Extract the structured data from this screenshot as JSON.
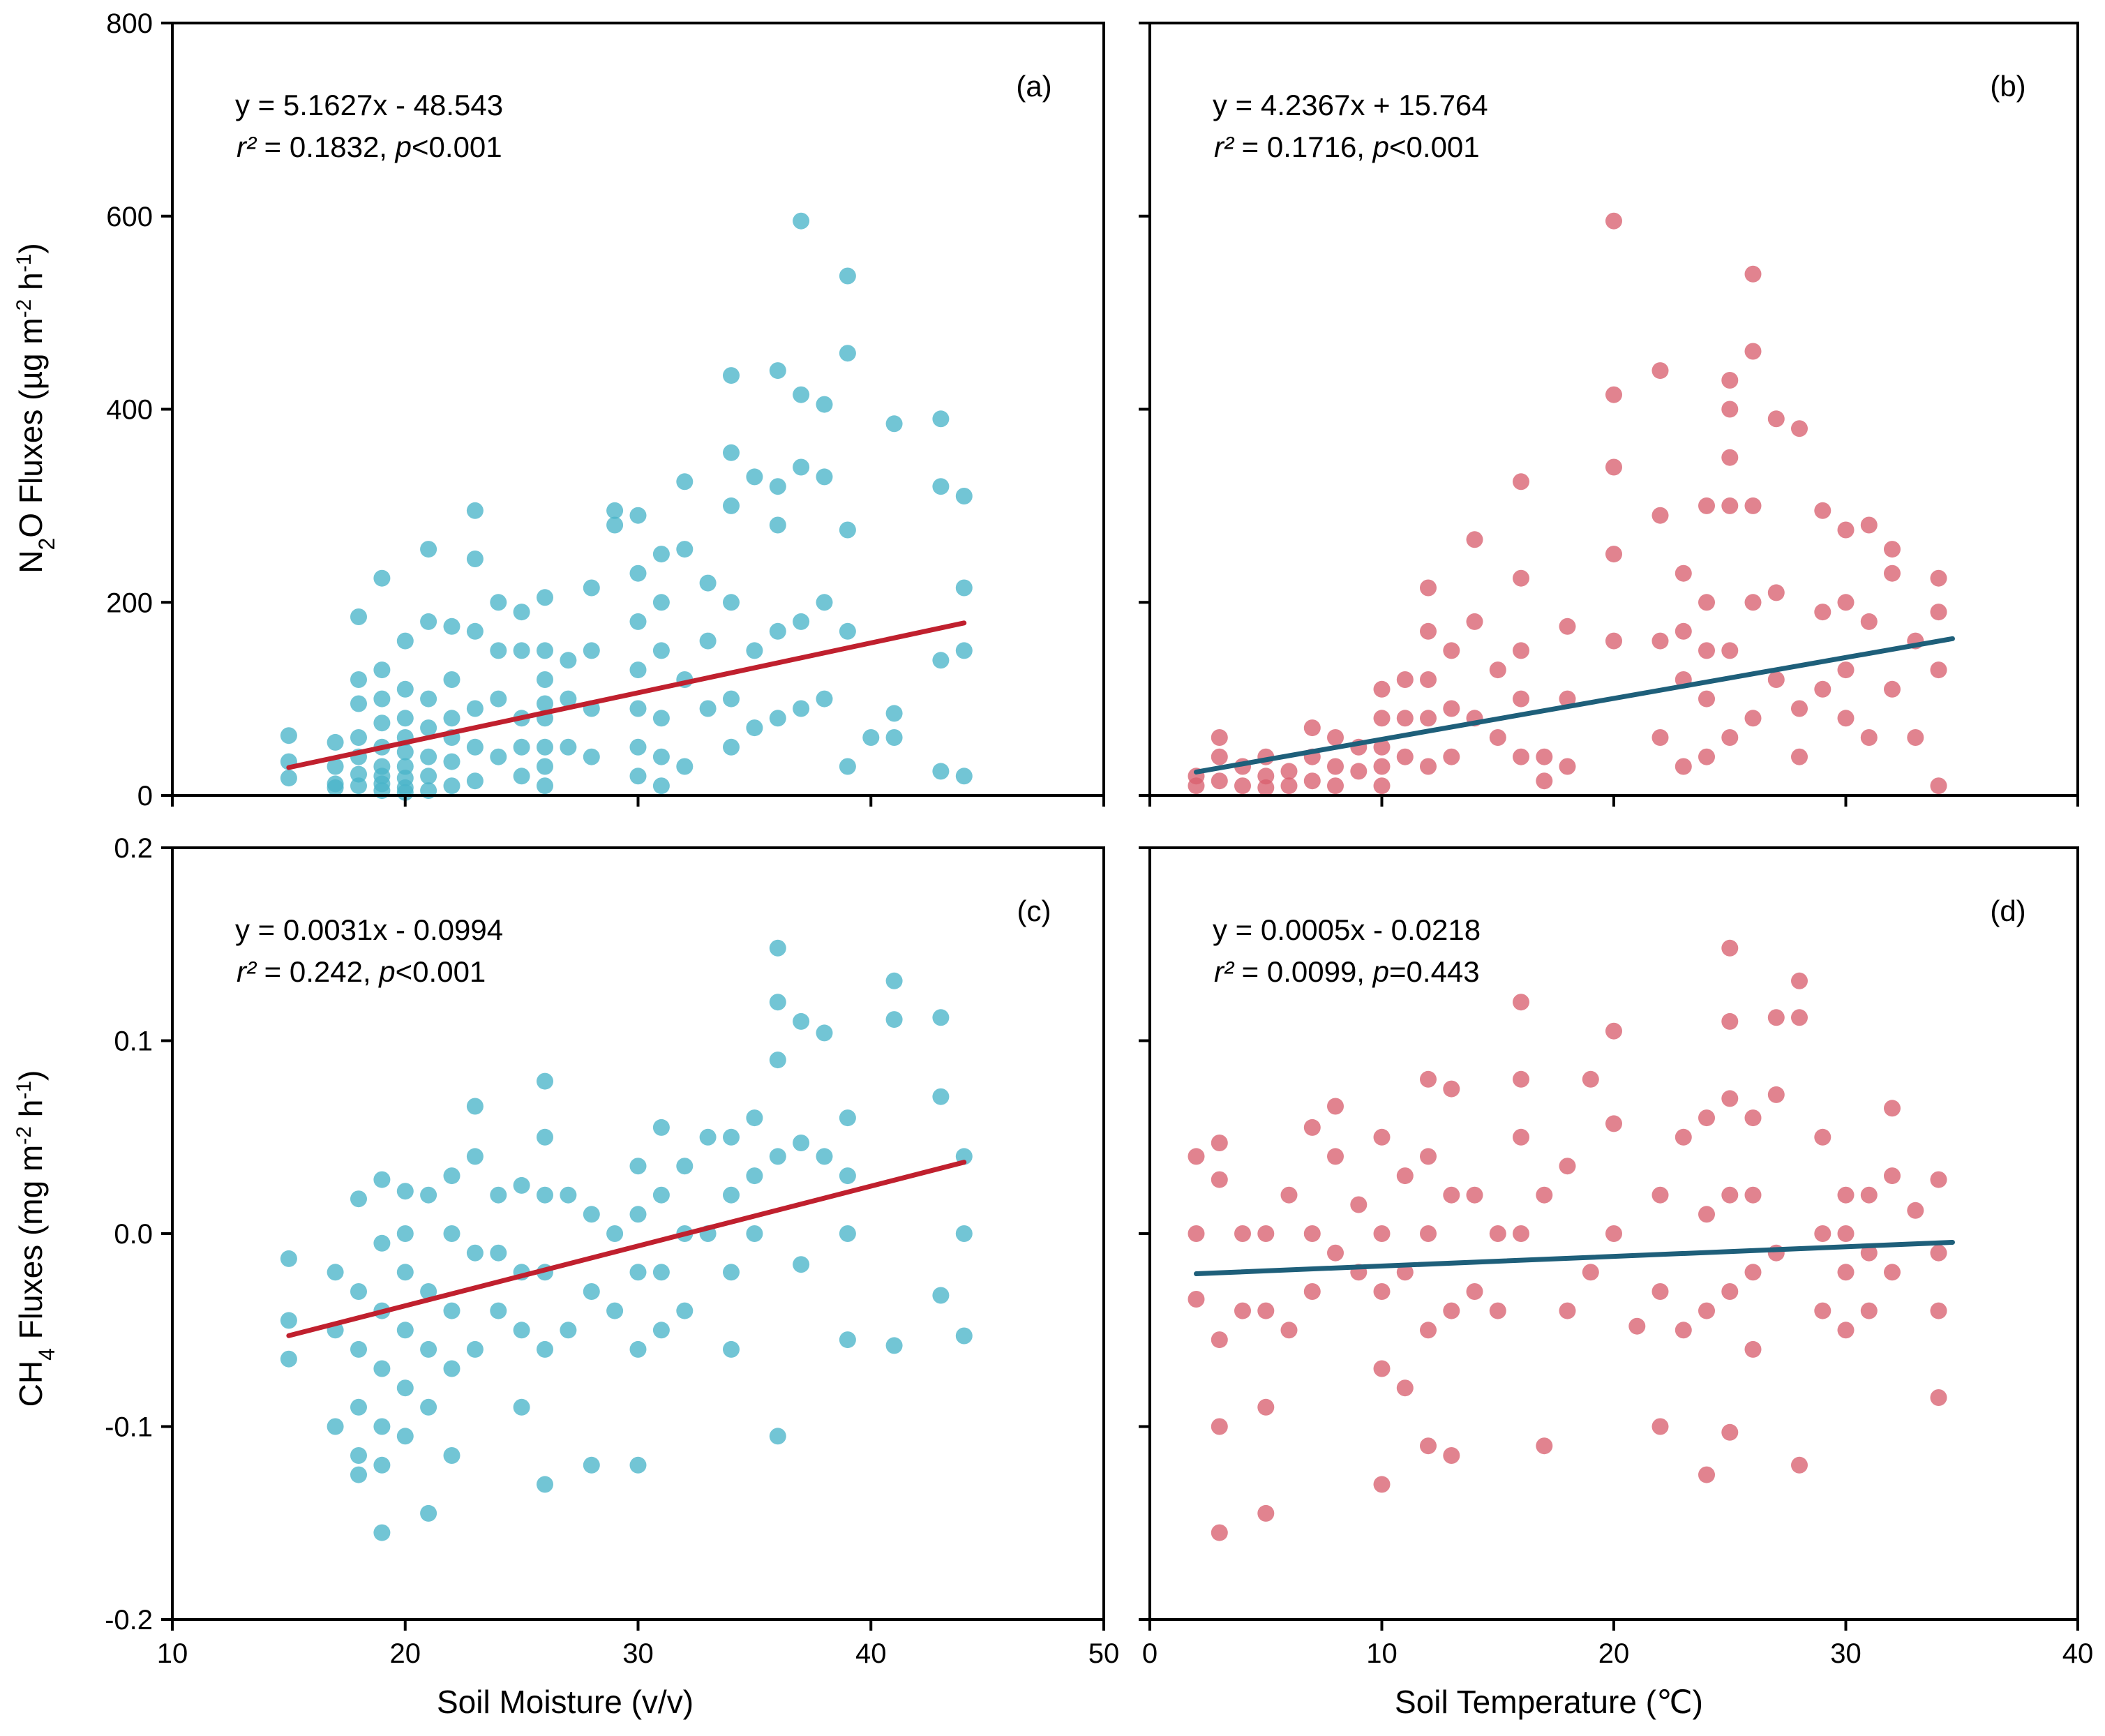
{
  "figure": {
    "y_titles": {
      "top": {
        "pre": "N",
        "sub1": "2",
        "mid": "O Fluxes (µg m",
        "sup1": "-2",
        "mid2": " h",
        "sup2": "-1",
        "post": ")"
      },
      "bottom": {
        "pre": "CH",
        "sub1": "4",
        "mid": " Fluxes (mg m",
        "sup1": "-2",
        "mid2": " h",
        "sup2": "-1",
        "post": ")"
      }
    },
    "x_titles": {
      "left": "Soil Moisture (v/v)",
      "right": "Soil Temperature (℃)"
    },
    "colors": {
      "teal_points": "#4ab5c9",
      "red_points": "#d9606f",
      "red_line": "#c0202e",
      "teal_line": "#1e5f7a"
    }
  },
  "chart_data": [
    {
      "id": "a",
      "type": "scatter",
      "panel_label": "(a)",
      "equation": "y = 5.1627x - 48.543",
      "stats": {
        "r2_label": "r²",
        "r2_value": " = 0.1832, ",
        "p_label": "p",
        "p_value": "<0.001"
      },
      "xlim": [
        10,
        50
      ],
      "ylim": [
        0,
        800
      ],
      "xticks": [
        10,
        20,
        30,
        40,
        50
      ],
      "yticks": [
        0,
        200,
        400,
        600,
        800
      ],
      "yticklabels": [
        "0",
        "200",
        "400",
        "600",
        "800"
      ],
      "fit": {
        "slope": 5.1627,
        "intercept": -48.543,
        "x_range": [
          15,
          44
        ]
      },
      "point_color": "teal",
      "line_color": "red",
      "x": [
        15,
        15,
        15,
        17,
        17,
        17,
        17,
        18,
        18,
        18,
        18,
        18,
        18,
        18,
        19,
        19,
        19,
        19,
        19,
        19,
        19,
        19,
        19,
        20,
        20,
        20,
        20,
        20,
        20,
        20,
        20,
        20,
        21,
        21,
        21,
        21,
        21,
        21,
        21,
        22,
        22,
        22,
        22,
        22,
        22,
        23,
        23,
        23,
        23,
        23,
        23,
        24,
        24,
        24,
        24,
        25,
        25,
        25,
        25,
        25,
        26,
        26,
        26,
        26,
        26,
        26,
        26,
        26,
        27,
        27,
        27,
        28,
        28,
        28,
        28,
        29,
        29,
        30,
        30,
        30,
        30,
        30,
        30,
        30,
        31,
        31,
        31,
        31,
        31,
        31,
        32,
        32,
        32,
        32,
        33,
        33,
        33,
        34,
        34,
        34,
        34,
        34,
        34,
        35,
        35,
        35,
        36,
        36,
        36,
        36,
        36,
        37,
        37,
        37,
        37,
        37,
        38,
        38,
        38,
        38,
        39,
        39,
        39,
        39,
        39,
        40,
        41,
        41,
        41,
        43,
        43,
        43,
        43,
        44,
        44,
        44,
        44
      ],
      "y": [
        62,
        35,
        18,
        55,
        30,
        12,
        8,
        185,
        120,
        95,
        60,
        40,
        22,
        10,
        225,
        130,
        100,
        75,
        50,
        30,
        20,
        12,
        5,
        160,
        110,
        80,
        60,
        45,
        30,
        18,
        8,
        3,
        255,
        180,
        100,
        70,
        40,
        20,
        5,
        175,
        120,
        80,
        60,
        35,
        10,
        295,
        245,
        170,
        90,
        50,
        15,
        200,
        150,
        100,
        40,
        190,
        150,
        80,
        50,
        20,
        205,
        150,
        120,
        95,
        80,
        50,
        30,
        10,
        140,
        100,
        50,
        215,
        150,
        90,
        40,
        295,
        280,
        290,
        230,
        180,
        130,
        90,
        50,
        20,
        250,
        200,
        150,
        80,
        40,
        10,
        325,
        255,
        120,
        30,
        220,
        160,
        90,
        435,
        355,
        300,
        200,
        100,
        50,
        330,
        150,
        70,
        440,
        320,
        280,
        170,
        80,
        595,
        415,
        340,
        180,
        90,
        405,
        330,
        200,
        100,
        538,
        458,
        275,
        170,
        30,
        60,
        385,
        85,
        60,
        390,
        320,
        140,
        25,
        310,
        215,
        150,
        20
      ]
    },
    {
      "id": "b",
      "type": "scatter",
      "panel_label": "(b)",
      "equation": "y = 4.2367x + 15.764",
      "stats": {
        "r2_label": "r²",
        "r2_value": " = 0.1716, ",
        "p_label": "p",
        "p_value": "<0.001"
      },
      "xlim": [
        0,
        40
      ],
      "ylim": [
        0,
        800
      ],
      "xticks": [
        0,
        10,
        20,
        30,
        40
      ],
      "yticks": [
        0,
        200,
        400,
        600,
        800
      ],
      "yticklabels": [
        "",
        "",
        "",
        "",
        ""
      ],
      "fit": {
        "slope": 4.2367,
        "intercept": 15.764,
        "x_range": [
          2,
          34.6
        ]
      },
      "point_color": "red",
      "line_color": "teal",
      "x": [
        2,
        2,
        3,
        3,
        3,
        4,
        4,
        5,
        5,
        5,
        6,
        6,
        7,
        7,
        7,
        8,
        8,
        8,
        9,
        9,
        10,
        10,
        10,
        10,
        10,
        11,
        11,
        11,
        12,
        12,
        12,
        12,
        12,
        13,
        13,
        13,
        14,
        14,
        14,
        15,
        15,
        16,
        16,
        16,
        16,
        16,
        17,
        17,
        18,
        18,
        18,
        20,
        20,
        20,
        20,
        20,
        22,
        22,
        22,
        22,
        23,
        23,
        23,
        23,
        24,
        24,
        24,
        24,
        24,
        25,
        25,
        25,
        25,
        25,
        25,
        26,
        26,
        26,
        26,
        26,
        27,
        27,
        27,
        28,
        28,
        28,
        29,
        29,
        29,
        30,
        30,
        30,
        30,
        31,
        31,
        31,
        32,
        32,
        32,
        33,
        33,
        34,
        34,
        34,
        34
      ],
      "y": [
        20,
        10,
        60,
        40,
        15,
        30,
        10,
        40,
        20,
        8,
        25,
        10,
        70,
        40,
        15,
        60,
        30,
        10,
        50,
        25,
        110,
        80,
        50,
        30,
        10,
        120,
        80,
        40,
        215,
        170,
        120,
        80,
        30,
        150,
        90,
        40,
        265,
        180,
        80,
        130,
        60,
        325,
        225,
        150,
        100,
        40,
        40,
        15,
        175,
        100,
        30,
        595,
        415,
        340,
        250,
        160,
        440,
        290,
        160,
        60,
        230,
        170,
        120,
        30,
        300,
        200,
        150,
        100,
        40,
        430,
        400,
        350,
        300,
        150,
        60,
        540,
        460,
        300,
        200,
        80,
        390,
        210,
        120,
        380,
        90,
        40,
        295,
        190,
        110,
        275,
        200,
        130,
        80,
        280,
        180,
        60,
        255,
        230,
        110,
        160,
        60,
        225,
        190,
        130,
        10
      ]
    },
    {
      "id": "c",
      "type": "scatter",
      "panel_label": "(c)",
      "equation": "y = 0.0031x - 0.0994",
      "stats": {
        "r2_label": "r²",
        "r2_value": " = 0.242, ",
        "p_label": "p",
        "p_value": "<0.001"
      },
      "xlim": [
        10,
        50
      ],
      "ylim": [
        -0.2,
        0.2
      ],
      "xticks": [
        10,
        20,
        30,
        40,
        50
      ],
      "yticks": [
        -0.2,
        -0.1,
        0.0,
        0.1,
        0.2
      ],
      "yticklabels": [
        "-0.2",
        "-0.1",
        "0.0",
        "0.1",
        "0.2"
      ],
      "fit": {
        "slope": 0.0031,
        "intercept": -0.0994,
        "x_range": [
          15,
          44
        ]
      },
      "point_color": "teal",
      "line_color": "red",
      "x": [
        15,
        15,
        15,
        17,
        17,
        17,
        18,
        18,
        18,
        18,
        18,
        18,
        19,
        19,
        19,
        19,
        19,
        19,
        19,
        20,
        20,
        20,
        20,
        20,
        20,
        21,
        21,
        21,
        21,
        21,
        22,
        22,
        22,
        22,
        22,
        23,
        23,
        23,
        23,
        24,
        24,
        24,
        25,
        25,
        25,
        25,
        26,
        26,
        26,
        26,
        26,
        26,
        27,
        27,
        28,
        28,
        28,
        29,
        29,
        30,
        30,
        30,
        30,
        30,
        31,
        31,
        31,
        31,
        32,
        32,
        32,
        33,
        33,
        34,
        34,
        34,
        34,
        35,
        35,
        35,
        36,
        36,
        36,
        36,
        36,
        37,
        37,
        37,
        38,
        38,
        39,
        39,
        39,
        39,
        41,
        41,
        41,
        43,
        43,
        43,
        44,
        44,
        44
      ],
      "y": [
        -0.013,
        -0.045,
        -0.065,
        -0.1,
        -0.05,
        -0.02,
        0.018,
        -0.03,
        -0.06,
        -0.09,
        -0.115,
        -0.125,
        0.028,
        -0.005,
        -0.04,
        -0.07,
        -0.1,
        -0.12,
        -0.155,
        0.022,
        0.0,
        -0.02,
        -0.05,
        -0.08,
        -0.105,
        0.02,
        -0.03,
        -0.06,
        -0.09,
        -0.145,
        0.03,
        0.0,
        -0.04,
        -0.07,
        -0.115,
        0.066,
        0.04,
        -0.01,
        -0.06,
        0.02,
        -0.01,
        -0.04,
        0.025,
        -0.02,
        -0.05,
        -0.09,
        0.079,
        0.05,
        0.02,
        -0.02,
        -0.06,
        -0.13,
        0.02,
        -0.05,
        0.01,
        -0.03,
        -0.12,
        0.0,
        -0.04,
        0.035,
        0.01,
        -0.02,
        -0.06,
        -0.12,
        0.055,
        0.02,
        -0.02,
        -0.05,
        0.035,
        0.0,
        -0.04,
        0.05,
        0.0,
        0.05,
        0.02,
        -0.02,
        -0.06,
        0.06,
        0.03,
        0.0,
        0.148,
        0.12,
        0.09,
        0.04,
        -0.105,
        0.11,
        0.047,
        -0.016,
        0.104,
        0.04,
        0.06,
        0.03,
        0.0,
        -0.055,
        0.131,
        0.111,
        -0.058,
        0.112,
        0.071,
        -0.032,
        0.04,
        0.0,
        -0.053
      ]
    },
    {
      "id": "d",
      "type": "scatter",
      "panel_label": "(d)",
      "equation": "y = 0.0005x - 0.0218",
      "stats": {
        "r2_label": "r²",
        "r2_value": " = 0.0099, ",
        "p_label": "p",
        "p_value": "=0.443"
      },
      "xlim": [
        0,
        40
      ],
      "ylim": [
        -0.2,
        0.2
      ],
      "xticks": [
        0,
        10,
        20,
        30,
        40
      ],
      "yticks": [
        -0.2,
        -0.1,
        0.0,
        0.1,
        0.2
      ],
      "yticklabels": [
        "",
        "",
        "",
        "",
        ""
      ],
      "fit": {
        "slope": 0.0005,
        "intercept": -0.0218,
        "x_range": [
          2,
          34.6
        ]
      },
      "point_color": "red",
      "line_color": "teal",
      "x": [
        2,
        2,
        2,
        3,
        3,
        3,
        3,
        3,
        4,
        4,
        5,
        5,
        5,
        5,
        6,
        6,
        7,
        7,
        7,
        8,
        8,
        8,
        9,
        9,
        10,
        10,
        10,
        10,
        10,
        11,
        11,
        11,
        12,
        12,
        12,
        12,
        12,
        13,
        13,
        13,
        13,
        14,
        14,
        15,
        15,
        16,
        16,
        16,
        16,
        17,
        17,
        18,
        18,
        19,
        19,
        20,
        20,
        20,
        21,
        22,
        22,
        22,
        23,
        23,
        24,
        24,
        24,
        24,
        25,
        25,
        25,
        25,
        25,
        25,
        26,
        26,
        26,
        26,
        27,
        27,
        27,
        28,
        28,
        28,
        29,
        29,
        29,
        30,
        30,
        30,
        30,
        31,
        31,
        31,
        32,
        32,
        32,
        33,
        34,
        34,
        34,
        34
      ],
      "y": [
        0.04,
        0.0,
        -0.034,
        0.047,
        0.028,
        -0.055,
        -0.1,
        -0.155,
        0.0,
        -0.04,
        -0.04,
        -0.09,
        -0.145,
        0.0,
        0.02,
        -0.05,
        0.055,
        0.0,
        -0.03,
        0.066,
        0.04,
        -0.01,
        0.015,
        -0.02,
        0.05,
        0.0,
        -0.03,
        -0.07,
        -0.13,
        0.03,
        -0.02,
        -0.08,
        0.08,
        0.04,
        0.0,
        -0.05,
        -0.11,
        0.075,
        0.02,
        -0.04,
        -0.115,
        0.02,
        -0.03,
        0.0,
        -0.04,
        0.12,
        0.08,
        0.05,
        0.0,
        -0.11,
        0.02,
        -0.04,
        0.035,
        -0.02,
        0.08,
        0.0,
        0.105,
        0.057,
        -0.048,
        0.02,
        -0.03,
        -0.1,
        0.05,
        -0.05,
        0.06,
        0.01,
        -0.04,
        -0.125,
        0.148,
        0.11,
        0.07,
        0.02,
        -0.03,
        -0.103,
        0.06,
        0.02,
        -0.02,
        -0.06,
        0.112,
        0.072,
        -0.01,
        0.131,
        0.112,
        -0.12,
        0.05,
        0.0,
        -0.04,
        0.02,
        0.0,
        -0.02,
        -0.05,
        0.02,
        -0.01,
        -0.04,
        0.065,
        0.03,
        -0.02,
        0.012,
        0.028,
        -0.01,
        -0.04,
        -0.085
      ]
    }
  ]
}
